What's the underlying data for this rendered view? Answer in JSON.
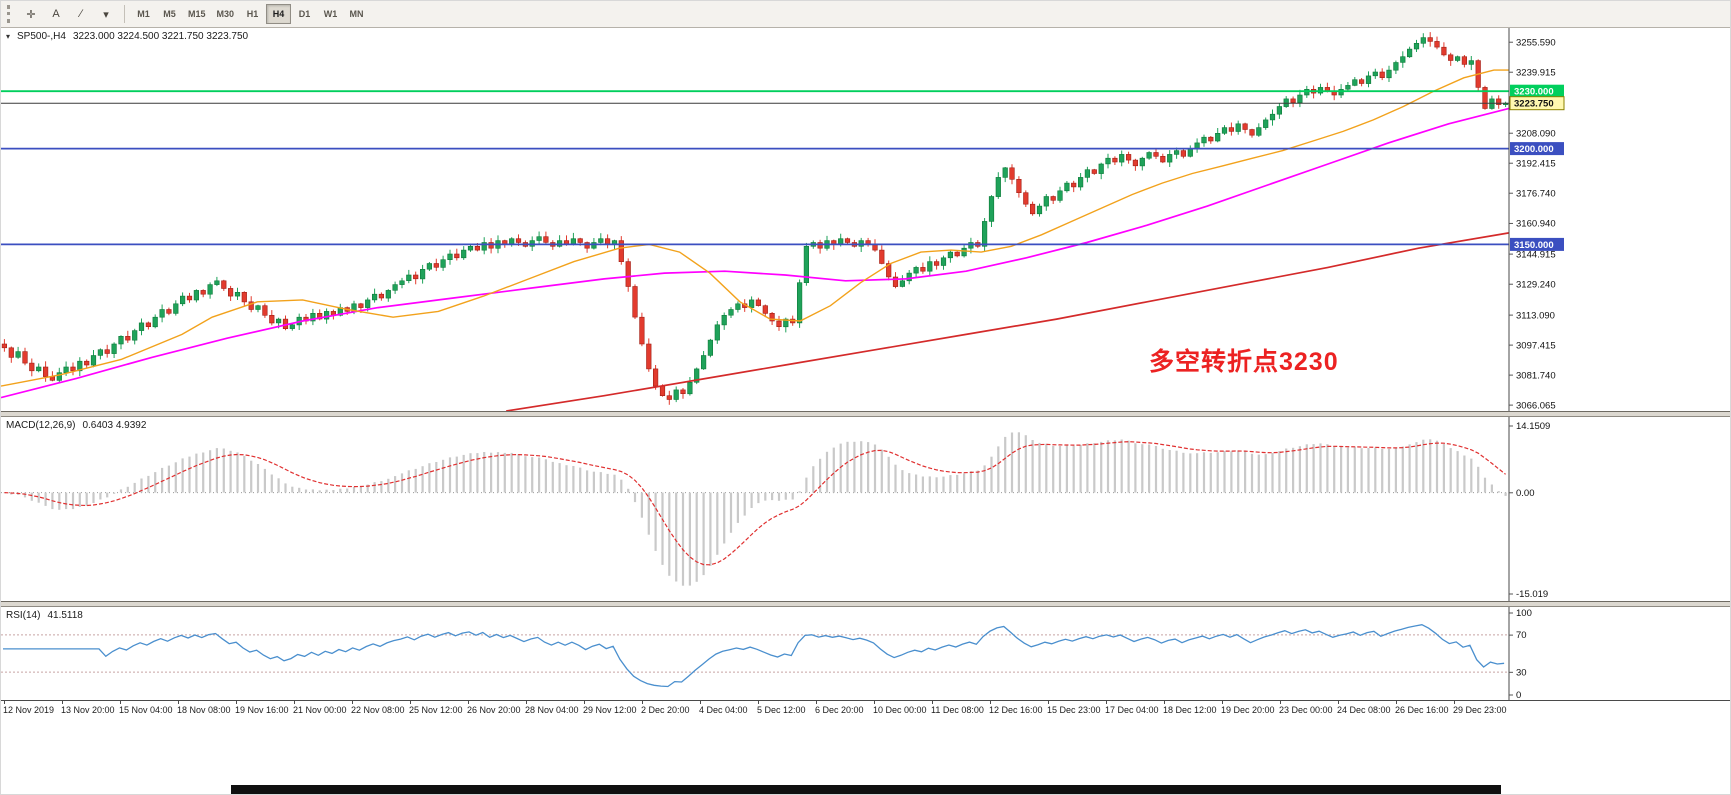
{
  "toolbar": {
    "tools": [
      {
        "name": "crosshair-tool-icon",
        "glyph": "✛"
      },
      {
        "name": "text-annotation-tool-icon",
        "glyph": "A"
      },
      {
        "name": "trendline-tool-icon",
        "glyph": "∕"
      },
      {
        "name": "drawing-tools-dropdown-icon",
        "glyph": "▾"
      }
    ],
    "timeframes": [
      "M1",
      "M5",
      "M15",
      "M30",
      "H1",
      "H4",
      "D1",
      "W1",
      "MN"
    ],
    "active_timeframe": "H4"
  },
  "chart": {
    "title": "SP500-,H4",
    "ohlc": "3223.000 3224.500 3221.750 3223.750",
    "collapse_glyph": "▾",
    "annotation": "多空转折点3230",
    "axis_labels": [
      "3255.590",
      "3239.915",
      "3208.090",
      "3192.415",
      "3176.740",
      "3160.940",
      "3144.915",
      "3129.240",
      "3113.090",
      "3097.415",
      "3081.740",
      "3066.065"
    ],
    "hlines": [
      {
        "price": 3230.0,
        "label": "3230.000",
        "color": "#00cf5d"
      },
      {
        "price": 3200.0,
        "label": "3200.000",
        "color": "#3b4fc0"
      },
      {
        "price": 3150.0,
        "label": "3150.000",
        "color": "#3b4fc0"
      }
    ],
    "current_price": {
      "value": 3223.75,
      "label": "3223.750"
    }
  },
  "macd": {
    "label": "MACD(12,26,9)",
    "values": "0.6403 4.9392",
    "axis": {
      "top": "14.1509",
      "zero": "0.00",
      "bottom": "-15.019"
    }
  },
  "rsi": {
    "label": "RSI(14)",
    "value": "41.5118",
    "axis": {
      "top": "100",
      "upper": "70",
      "lower": "30",
      "bottom": "0"
    },
    "levels": [
      70,
      30
    ]
  },
  "time_axis": [
    "12 Nov 2019",
    "13 Nov 20:00",
    "15 Nov 04:00",
    "18 Nov 08:00",
    "19 Nov 16:00",
    "21 Nov 00:00",
    "22 Nov 08:00",
    "25 Nov 12:00",
    "26 Nov 20:00",
    "28 Nov 04:00",
    "29 Nov 12:00",
    "2 Dec 20:00",
    "4 Dec 04:00",
    "5 Dec 12:00",
    "6 Dec 20:00",
    "10 Dec 00:00",
    "11 Dec 08:00",
    "12 Dec 16:00",
    "15 Dec 23:00",
    "17 Dec 04:00",
    "18 Dec 12:00",
    "19 Dec 20:00",
    "23 Dec 00:00",
    "24 Dec 08:00",
    "26 Dec 16:00",
    "29 Dec 23:00"
  ],
  "colors": {
    "candle_up": "#1fa25a",
    "candle_up_border": "#0d7a38",
    "candle_down": "#e23b2e",
    "candle_down_border": "#a01f16",
    "ma_fast": "#f2a21c",
    "ma_mid": "#ff00ff",
    "ma_slow": "#d42a2a",
    "macd_hist": "#c9c9c9",
    "macd_signal": "#e03030",
    "rsi_line": "#4a8fce",
    "annotation_red": "#ec2222",
    "current_tag_bg": "#fff8b0",
    "current_tag_border": "#8b8000",
    "axis_text": "#111111"
  },
  "chart_data": {
    "type": "candlestick",
    "symbol": "SP500-",
    "timeframe": "H4",
    "ylim": [
      3063,
      3263
    ],
    "closes": [
      3096,
      3091,
      3094,
      3088,
      3084,
      3086,
      3081,
      3079,
      3083,
      3086,
      3084,
      3089,
      3087,
      3092,
      3095,
      3093,
      3098,
      3102,
      3100,
      3105,
      3109,
      3107,
      3112,
      3116,
      3114,
      3119,
      3123,
      3121,
      3126,
      3124,
      3129,
      3131,
      3127,
      3123,
      3125,
      3120,
      3116,
      3118,
      3113,
      3109,
      3111,
      3106,
      3108,
      3112,
      3110,
      3114,
      3111,
      3115,
      3113,
      3117,
      3115,
      3119,
      3117,
      3121,
      3124,
      3122,
      3126,
      3129,
      3131,
      3134,
      3132,
      3137,
      3140,
      3138,
      3142,
      3145,
      3143,
      3147,
      3149,
      3147,
      3151,
      3148,
      3152,
      3150,
      3153,
      3151,
      3149,
      3152,
      3154,
      3151,
      3149,
      3152,
      3150,
      3153,
      3151,
      3148,
      3151,
      3153,
      3150,
      3152,
      3141,
      3128,
      3112,
      3098,
      3085,
      3076,
      3071,
      3069,
      3074,
      3072,
      3078,
      3085,
      3092,
      3100,
      3108,
      3113,
      3116,
      3119,
      3117,
      3121,
      3118,
      3114,
      3110,
      3107,
      3111,
      3109,
      3130,
      3149,
      3151,
      3148,
      3152,
      3150,
      3153,
      3151,
      3149,
      3152,
      3150,
      3147,
      3140,
      3133,
      3128,
      3131,
      3135,
      3138,
      3136,
      3141,
      3139,
      3143,
      3146,
      3144,
      3148,
      3151,
      3149,
      3162,
      3175,
      3185,
      3190,
      3184,
      3177,
      3171,
      3166,
      3170,
      3175,
      3173,
      3178,
      3182,
      3180,
      3185,
      3189,
      3187,
      3192,
      3195,
      3193,
      3197,
      3194,
      3191,
      3195,
      3198,
      3196,
      3193,
      3197,
      3199,
      3196,
      3200,
      3203,
      3206,
      3204,
      3208,
      3211,
      3209,
      3213,
      3210,
      3207,
      3211,
      3215,
      3218,
      3222,
      3226,
      3224,
      3228,
      3231,
      3229,
      3232,
      3230,
      3228,
      3231,
      3233,
      3236,
      3234,
      3238,
      3240,
      3237,
      3241,
      3245,
      3248,
      3252,
      3255,
      3258,
      3256,
      3253,
      3249,
      3246,
      3248,
      3244,
      3246,
      3232,
      3221,
      3226,
      3223,
      3223.75
    ],
    "last_candle": {
      "open": 3223.0,
      "high": 3224.5,
      "low": 3221.75,
      "close": 3223.75
    },
    "ma_fast_orange": [
      [
        0,
        3076
      ],
      [
        0.04,
        3082
      ],
      [
        0.08,
        3090
      ],
      [
        0.12,
        3103
      ],
      [
        0.14,
        3112
      ],
      [
        0.17,
        3120
      ],
      [
        0.2,
        3121
      ],
      [
        0.23,
        3116
      ],
      [
        0.26,
        3112
      ],
      [
        0.29,
        3115
      ],
      [
        0.32,
        3123
      ],
      [
        0.35,
        3132
      ],
      [
        0.38,
        3141
      ],
      [
        0.41,
        3148
      ],
      [
        0.43,
        3150
      ],
      [
        0.45,
        3146
      ],
      [
        0.47,
        3135
      ],
      [
        0.49,
        3120
      ],
      [
        0.51,
        3111
      ],
      [
        0.53,
        3110
      ],
      [
        0.55,
        3118
      ],
      [
        0.57,
        3130
      ],
      [
        0.59,
        3140
      ],
      [
        0.61,
        3146
      ],
      [
        0.63,
        3147
      ],
      [
        0.65,
        3146
      ],
      [
        0.67,
        3149
      ],
      [
        0.69,
        3155
      ],
      [
        0.71,
        3162
      ],
      [
        0.73,
        3169
      ],
      [
        0.75,
        3176
      ],
      [
        0.77,
        3182
      ],
      [
        0.79,
        3187
      ],
      [
        0.81,
        3191
      ],
      [
        0.83,
        3195
      ],
      [
        0.85,
        3199
      ],
      [
        0.87,
        3204
      ],
      [
        0.89,
        3209
      ],
      [
        0.91,
        3215
      ],
      [
        0.93,
        3222
      ],
      [
        0.95,
        3230
      ],
      [
        0.97,
        3237
      ],
      [
        0.99,
        3241
      ],
      [
        1,
        3241
      ]
    ],
    "ma_mid_magenta": [
      [
        0,
        3070
      ],
      [
        0.05,
        3080
      ],
      [
        0.1,
        3091
      ],
      [
        0.15,
        3101
      ],
      [
        0.2,
        3110
      ],
      [
        0.25,
        3117
      ],
      [
        0.3,
        3122
      ],
      [
        0.35,
        3127
      ],
      [
        0.4,
        3132
      ],
      [
        0.44,
        3135
      ],
      [
        0.48,
        3136
      ],
      [
        0.52,
        3134
      ],
      [
        0.56,
        3131
      ],
      [
        0.6,
        3132
      ],
      [
        0.64,
        3136
      ],
      [
        0.68,
        3143
      ],
      [
        0.72,
        3151
      ],
      [
        0.76,
        3160
      ],
      [
        0.8,
        3170
      ],
      [
        0.84,
        3181
      ],
      [
        0.88,
        3192
      ],
      [
        0.92,
        3203
      ],
      [
        0.96,
        3213
      ],
      [
        1,
        3221
      ]
    ],
    "ma_slow_red": [
      [
        0.335,
        3063
      ],
      [
        0.4,
        3071
      ],
      [
        0.46,
        3079
      ],
      [
        0.52,
        3087
      ],
      [
        0.58,
        3095
      ],
      [
        0.64,
        3103
      ],
      [
        0.7,
        3111
      ],
      [
        0.76,
        3120
      ],
      [
        0.82,
        3129
      ],
      [
        0.88,
        3138
      ],
      [
        0.94,
        3148
      ],
      [
        1,
        3156
      ]
    ],
    "macd_params": [
      12,
      26,
      9
    ],
    "rsi_period": 14
  }
}
